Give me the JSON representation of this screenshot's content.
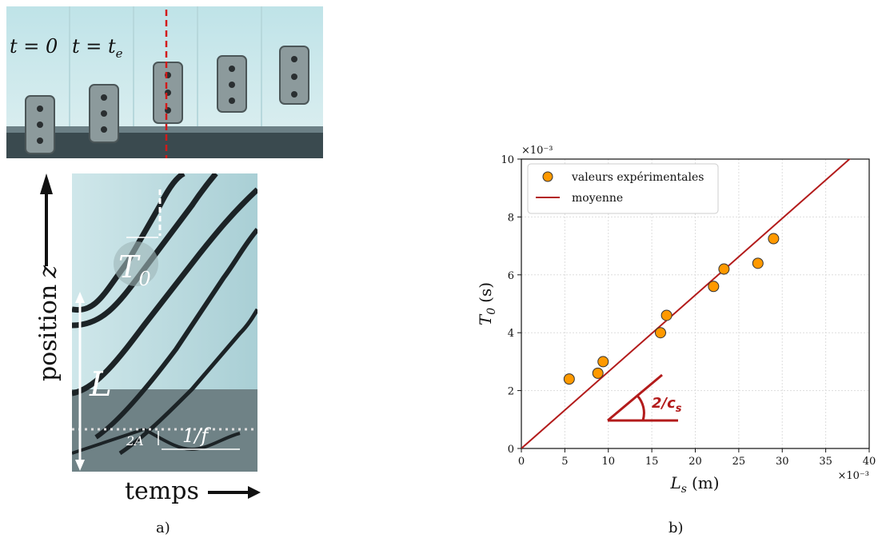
{
  "panel_a": {
    "labels": {
      "t0": "t = 0",
      "te": "t = t",
      "te_sub": "e",
      "position": "position",
      "position_var": "z",
      "temps": "temps",
      "T0": "T",
      "T0_sub": "0",
      "L": "L",
      "twoA": "2A",
      "inv_f": "1/f"
    },
    "caption": "a)",
    "colors": {
      "dashed_line": "#d11a1a",
      "photo_bg": "#c8e8ea"
    }
  },
  "panel_b": {
    "caption": "b)",
    "slope_label": "2/c",
    "slope_label_sub": "s",
    "colors": {
      "points": "#ff9900",
      "line": "#b31b1b",
      "slope": "#b31b1b"
    }
  },
  "chart_data": {
    "type": "scatter",
    "xlabel": "L",
    "xlabel_sub": "s",
    "xlabel_unit": "(m)",
    "ylabel": "T",
    "ylabel_sub": "0",
    "ylabel_unit": "(s)",
    "x_multiplier": "×10⁻³",
    "y_multiplier": "×10⁻³",
    "xlim": [
      0,
      40
    ],
    "ylim": [
      0,
      10
    ],
    "xticks": [
      0,
      5,
      10,
      15,
      20,
      25,
      30,
      35,
      40
    ],
    "yticks": [
      0,
      2,
      4,
      6,
      8,
      10
    ],
    "grid": true,
    "legend_position": "top-left",
    "series": [
      {
        "name": "valeurs expérimentales",
        "kind": "points",
        "x": [
          5.5,
          8.8,
          9.4,
          16.0,
          16.7,
          22.1,
          23.3,
          27.2,
          29.0
        ],
        "y": [
          2.4,
          2.6,
          3.0,
          4.0,
          4.6,
          5.6,
          6.2,
          6.4,
          7.25
        ]
      },
      {
        "name": "moyenne",
        "kind": "line",
        "x": [
          0,
          40
        ],
        "y": [
          0,
          10.6
        ]
      }
    ]
  }
}
